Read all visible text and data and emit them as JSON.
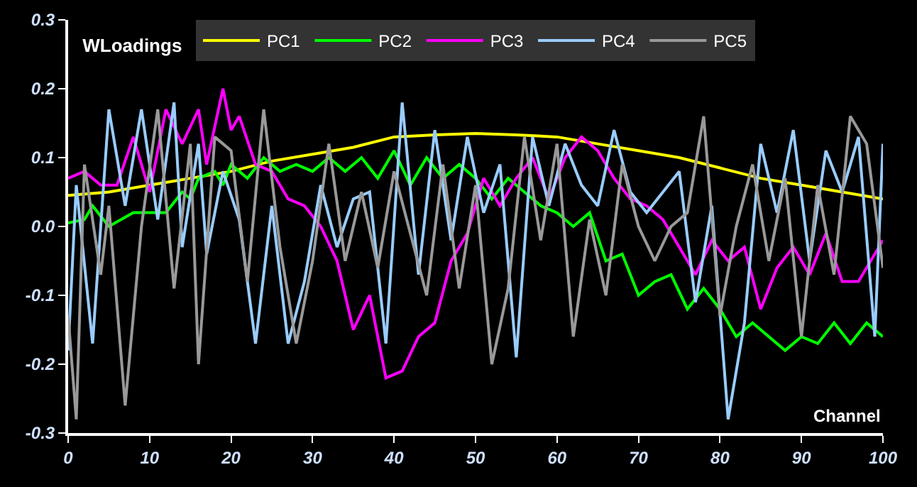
{
  "chart_data": {
    "type": "line",
    "title": "WLoadings",
    "xlabel": "Channel",
    "xlim": [
      0,
      100
    ],
    "ylim": [
      -0.3,
      0.3
    ],
    "xticks": [
      0,
      10,
      20,
      30,
      40,
      50,
      60,
      70,
      80,
      90,
      100
    ],
    "yticks": [
      -0.3,
      -0.2,
      -0.1,
      {
        "value": 0,
        "label": "0.0"
      },
      0.1,
      0.2,
      0.3
    ],
    "grid": false,
    "legend": "top",
    "marker": "none",
    "line_style": "solid",
    "series": [
      {
        "name": "PC1",
        "color": "#ffff00",
        "x": [
          0,
          5,
          10,
          15,
          20,
          25,
          30,
          35,
          40,
          45,
          50,
          55,
          60,
          65,
          70,
          75,
          80,
          85,
          90,
          95,
          100
        ],
        "values": [
          0.045,
          0.05,
          0.06,
          0.07,
          0.08,
          0.095,
          0.105,
          0.115,
          0.13,
          0.133,
          0.135,
          0.133,
          0.13,
          0.12,
          0.11,
          0.1,
          0.085,
          0.07,
          0.06,
          0.05,
          0.04
        ]
      },
      {
        "name": "PC2",
        "color": "#00ff00",
        "x": [
          0,
          2,
          3,
          5,
          8,
          10,
          12,
          14,
          15,
          16,
          18,
          19,
          20,
          22,
          24,
          26,
          28,
          30,
          32,
          34,
          36,
          38,
          40,
          42,
          44,
          46,
          48,
          50,
          52,
          54,
          56,
          58,
          60,
          62,
          64,
          66,
          68,
          70,
          72,
          74,
          76,
          78,
          80,
          82,
          84,
          86,
          88,
          90,
          92,
          94,
          96,
          98,
          100
        ],
        "values": [
          0.005,
          0.01,
          0.03,
          0.0,
          0.02,
          0.02,
          0.02,
          0.05,
          0.04,
          0.07,
          0.08,
          0.06,
          0.09,
          0.07,
          0.1,
          0.08,
          0.09,
          0.08,
          0.1,
          0.08,
          0.1,
          0.07,
          0.11,
          0.06,
          0.1,
          0.07,
          0.09,
          0.07,
          0.04,
          0.07,
          0.05,
          0.03,
          0.02,
          0.0,
          0.02,
          -0.05,
          -0.04,
          -0.1,
          -0.08,
          -0.07,
          -0.12,
          -0.09,
          -0.12,
          -0.16,
          -0.14,
          -0.16,
          -0.18,
          -0.16,
          -0.17,
          -0.14,
          -0.17,
          -0.14,
          -0.16
        ]
      },
      {
        "name": "PC3",
        "color": "#ff00ff",
        "x": [
          0,
          2,
          4,
          6,
          8,
          10,
          12,
          14,
          16,
          17,
          19,
          20,
          21,
          23,
          25,
          27,
          29,
          31,
          33,
          35,
          37,
          39,
          41,
          43,
          45,
          47,
          49,
          51,
          53,
          55,
          57,
          59,
          61,
          63,
          65,
          67,
          69,
          71,
          73,
          75,
          77,
          79,
          81,
          83,
          85,
          87,
          89,
          91,
          93,
          95,
          97,
          100
        ],
        "values": [
          0.07,
          0.08,
          0.06,
          0.06,
          0.13,
          0.05,
          0.17,
          0.12,
          0.17,
          0.09,
          0.2,
          0.14,
          0.16,
          0.09,
          0.08,
          0.04,
          0.03,
          0.0,
          -0.05,
          -0.15,
          -0.1,
          -0.22,
          -0.21,
          -0.16,
          -0.14,
          -0.05,
          -0.01,
          0.07,
          0.03,
          0.07,
          0.1,
          0.04,
          0.1,
          0.13,
          0.11,
          0.07,
          0.04,
          0.03,
          0.01,
          -0.03,
          -0.07,
          -0.02,
          -0.05,
          -0.03,
          -0.12,
          -0.06,
          -0.03,
          -0.07,
          -0.01,
          -0.08,
          -0.08,
          -0.02
        ]
      },
      {
        "name": "PC4",
        "color": "#99ccff",
        "x": [
          0,
          1,
          3,
          5,
          7,
          9,
          11,
          13,
          14,
          16,
          17,
          19,
          21,
          23,
          25,
          27,
          29,
          31,
          33,
          35,
          37,
          39,
          41,
          43,
          45,
          47,
          49,
          51,
          53,
          55,
          57,
          59,
          61,
          63,
          65,
          67,
          69,
          71,
          73,
          75,
          77,
          79,
          81,
          83,
          85,
          87,
          89,
          91,
          93,
          95,
          97,
          99,
          100
        ],
        "values": [
          -0.18,
          0.06,
          -0.17,
          0.17,
          0.03,
          0.17,
          0.01,
          0.18,
          -0.03,
          0.12,
          -0.04,
          0.08,
          0.01,
          -0.17,
          0.03,
          -0.17,
          -0.08,
          0.06,
          -0.03,
          0.04,
          0.05,
          -0.17,
          0.18,
          -0.07,
          0.14,
          -0.02,
          0.13,
          0.02,
          0.09,
          -0.19,
          0.13,
          0.03,
          0.12,
          0.06,
          0.03,
          0.14,
          0.05,
          0.02,
          0.05,
          0.08,
          -0.11,
          0.03,
          -0.28,
          -0.14,
          0.12,
          0.02,
          0.14,
          -0.05,
          0.11,
          0.05,
          0.13,
          -0.16,
          0.12
        ]
      },
      {
        "name": "PC5",
        "color": "#999999",
        "x": [
          0,
          1,
          2,
          4,
          5,
          7,
          9,
          11,
          13,
          15,
          16,
          18,
          20,
          22,
          24,
          26,
          28,
          30,
          32,
          34,
          36,
          38,
          40,
          42,
          44,
          46,
          48,
          50,
          52,
          54,
          56,
          58,
          60,
          62,
          64,
          66,
          68,
          70,
          72,
          74,
          76,
          78,
          80,
          82,
          84,
          86,
          88,
          90,
          92,
          94,
          96,
          98,
          100
        ],
        "values": [
          -0.13,
          -0.28,
          0.09,
          -0.07,
          0.03,
          -0.26,
          0.0,
          0.17,
          -0.09,
          0.12,
          -0.2,
          0.13,
          0.11,
          -0.08,
          0.17,
          -0.03,
          -0.17,
          -0.05,
          0.12,
          -0.05,
          0.05,
          -0.06,
          0.08,
          -0.01,
          -0.1,
          0.09,
          -0.09,
          0.06,
          -0.2,
          -0.09,
          0.13,
          -0.02,
          0.12,
          -0.16,
          0.01,
          -0.1,
          0.09,
          0.0,
          -0.05,
          0.0,
          0.02,
          0.16,
          -0.13,
          0.0,
          0.09,
          -0.05,
          0.07,
          -0.16,
          0.06,
          -0.07,
          0.16,
          0.12,
          -0.06
        ]
      }
    ]
  }
}
